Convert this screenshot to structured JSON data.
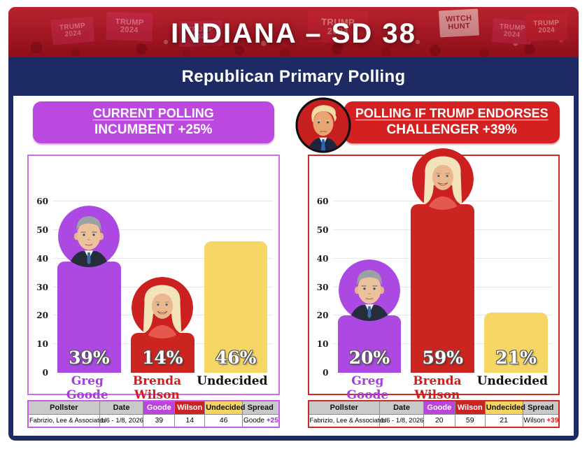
{
  "banner": {
    "title": "INDIANA – SD 38",
    "signs": [
      {
        "name": "trump-2024-sign",
        "line1": "TRUMP",
        "line2": "2024"
      },
      {
        "name": "trump-2024-sign",
        "line1": "TRUMP",
        "line2": "2024"
      },
      {
        "name": "trump-2024-sign",
        "line1": "TRUMP",
        "line2": "2024"
      },
      {
        "name": "trump-2024-sign",
        "line1": "TRUMP",
        "line2": "2024"
      },
      {
        "name": "witch-hunt-sign",
        "line1": "WITCH",
        "line2": "HUNT"
      },
      {
        "name": "trump-2024-sign",
        "line1": "TRUMP",
        "line2": "2024"
      },
      {
        "name": "trump-2024-sign",
        "line1": "TRUMP",
        "line2": "2024"
      }
    ]
  },
  "subtitle": "Republican Primary Polling",
  "colors": {
    "navy": "#1d2a64",
    "purple": "#bb49e0",
    "red": "#cc2420",
    "yellow": "#f6d765",
    "white": "#ffffff"
  },
  "panels": [
    {
      "header_line1": "CURRENT POLLING",
      "header_line2": "INCUMBENT +25%",
      "table": {
        "headers": [
          "Pollster",
          "Date",
          "Goode",
          "Wilson",
          "Undecided",
          "Spread"
        ],
        "row": {
          "pollster": "Fabrizio, Lee & Associates",
          "date": "1/6 - 1/8, 2026",
          "goode": "39",
          "wilson": "14",
          "undecided": "46",
          "spread_name": "Goode",
          "spread_value": "+25"
        }
      }
    },
    {
      "header_line1": "POLLING IF TRUMP ENDORSES",
      "header_line2": "CHALLENGER +39%",
      "badge_icon": "trump-photo",
      "table": {
        "headers": [
          "Pollster",
          "Date",
          "Goode",
          "Wilson",
          "Undecided",
          "Spread"
        ],
        "row": {
          "pollster": "Fabrizio, Lee & Associates",
          "date": "1/6 - 1/8, 2026",
          "goode": "20",
          "wilson": "59",
          "undecided": "21",
          "spread_name": "Wilson",
          "spread_value": "+39"
        }
      }
    }
  ],
  "chart_data": [
    {
      "type": "bar",
      "title": "Current Polling — Incumbent +25%",
      "categories": [
        "Greg Goode",
        "Brenda Wilson",
        "Undecided"
      ],
      "values": [
        39,
        14,
        46
      ],
      "value_labels": [
        "39%",
        "14%",
        "46%"
      ],
      "bar_colors": [
        "#ab49e2",
        "#cc2420",
        "#f6d765"
      ],
      "label_colors": [
        "#a43ddb",
        "#cc1f1f",
        "#111111"
      ],
      "avatars": [
        "greg-goode-photo",
        "brenda-wilson-photo",
        null
      ],
      "xlabel": "",
      "ylabel": "",
      "ylim": [
        0,
        60
      ],
      "yticks": [
        0,
        10,
        20,
        30,
        40,
        50,
        60
      ],
      "grid": true,
      "legend": "none"
    },
    {
      "type": "bar",
      "title": "Polling If Trump Endorses — Challenger +39%",
      "categories": [
        "Greg Goode",
        "Brenda Wilson",
        "Undecided"
      ],
      "values": [
        20,
        59,
        21
      ],
      "value_labels": [
        "20%",
        "59%",
        "21%"
      ],
      "bar_colors": [
        "#ab49e2",
        "#cc2420",
        "#f6d765"
      ],
      "label_colors": [
        "#a43ddb",
        "#cc1f1f",
        "#111111"
      ],
      "avatars": [
        "greg-goode-photo",
        "brenda-wilson-photo",
        null
      ],
      "xlabel": "",
      "ylabel": "",
      "ylim": [
        0,
        60
      ],
      "yticks": [
        0,
        10,
        20,
        30,
        40,
        50,
        60
      ],
      "grid": true,
      "legend": "none"
    }
  ]
}
